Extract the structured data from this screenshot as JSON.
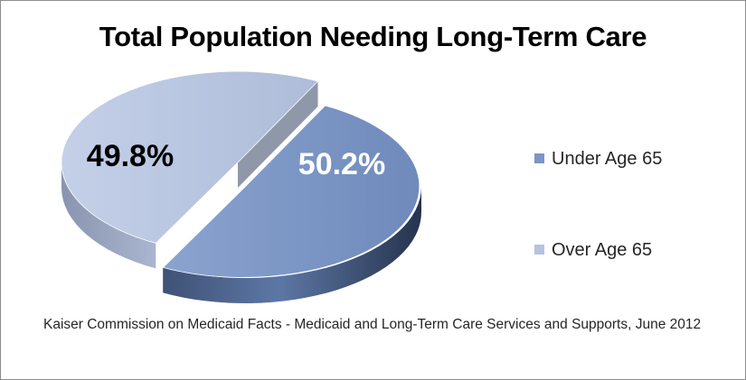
{
  "chart_data": {
    "type": "pie",
    "title": "Total Population Needing Long-Term Care",
    "slices": [
      {
        "name": "Under Age 65",
        "value": 50.2,
        "label": "50.2%",
        "color": "#7b95c4",
        "label_color": "#ffffff"
      },
      {
        "name": "Over Age 65",
        "value": 49.8,
        "label": "49.8%",
        "color": "#b5c3df",
        "label_color": "#000000"
      }
    ],
    "legend_placement": "right"
  },
  "source_note": "Kaiser Commission on Medicaid Facts - Medicaid and Long-Term Care Services and Supports, June 2012"
}
